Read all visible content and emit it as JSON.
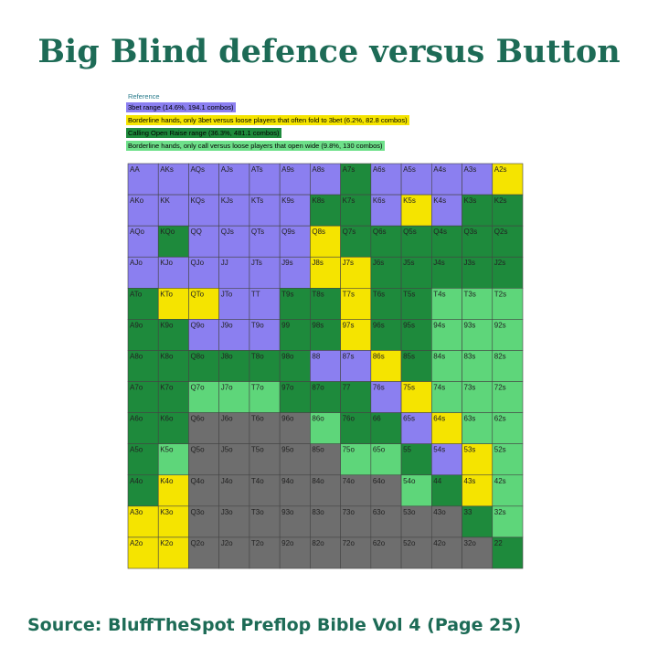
{
  "header": {
    "title": "Big Blind defence versus Button"
  },
  "legend": {
    "title": "Reference",
    "items": [
      "3bet range (14.6%, 194.1 combos)",
      "Borderline hands, only 3bet versus loose players that often fold to 3bet (6.2%, 82.8 combos)",
      "Calling Open Raise range (36.3%, 481.1 combos)",
      "Borderline hands, only call versus loose players that open wide (9.8%, 130 combos)"
    ]
  },
  "grid": {
    "rows": [
      [
        "AA",
        "AKs",
        "AQs",
        "AJs",
        "ATs",
        "A9s",
        "A8s",
        "A7s",
        "A6s",
        "A5s",
        "A4s",
        "A3s",
        "A2s"
      ],
      [
        "AKo",
        "KK",
        "KQs",
        "KJs",
        "KTs",
        "K9s",
        "K8s",
        "K7s",
        "K6s",
        "K5s",
        "K4s",
        "K3s",
        "K2s"
      ],
      [
        "AQo",
        "KQo",
        "QQ",
        "QJs",
        "QTs",
        "Q9s",
        "Q8s",
        "Q7s",
        "Q6s",
        "Q5s",
        "Q4s",
        "Q3s",
        "Q2s"
      ],
      [
        "AJo",
        "KJo",
        "QJo",
        "JJ",
        "JTs",
        "J9s",
        "J8s",
        "J7s",
        "J6s",
        "J5s",
        "J4s",
        "J3s",
        "J2s"
      ],
      [
        "ATo",
        "KTo",
        "QTo",
        "JTo",
        "TT",
        "T9s",
        "T8s",
        "T7s",
        "T6s",
        "T5s",
        "T4s",
        "T3s",
        "T2s"
      ],
      [
        "A9o",
        "K9o",
        "Q9o",
        "J9o",
        "T9o",
        "99",
        "98s",
        "97s",
        "96s",
        "95s",
        "94s",
        "93s",
        "92s"
      ],
      [
        "A8o",
        "K8o",
        "Q8o",
        "J8o",
        "T8o",
        "98o",
        "88",
        "87s",
        "86s",
        "85s",
        "84s",
        "83s",
        "82s"
      ],
      [
        "A7o",
        "K7o",
        "Q7o",
        "J7o",
        "T7o",
        "97o",
        "87o",
        "77",
        "76s",
        "75s",
        "74s",
        "73s",
        "72s"
      ],
      [
        "A6o",
        "K6o",
        "Q6o",
        "J6o",
        "T6o",
        "96o",
        "86o",
        "76o",
        "66",
        "65s",
        "64s",
        "63s",
        "62s"
      ],
      [
        "A5o",
        "K5o",
        "Q5o",
        "J5o",
        "T5o",
        "95o",
        "85o",
        "75o",
        "65o",
        "55",
        "54s",
        "53s",
        "52s"
      ],
      [
        "A4o",
        "K4o",
        "Q4o",
        "J4o",
        "T4o",
        "94o",
        "84o",
        "74o",
        "64o",
        "54o",
        "44",
        "43s",
        "42s"
      ],
      [
        "A3o",
        "K3o",
        "Q3o",
        "J3o",
        "T3o",
        "93o",
        "83o",
        "73o",
        "63o",
        "53o",
        "43o",
        "33",
        "32s"
      ],
      [
        "A2o",
        "K2o",
        "Q2o",
        "J2o",
        "T2o",
        "92o",
        "82o",
        "72o",
        "62o",
        "52o",
        "42o",
        "32o",
        "22"
      ]
    ]
  },
  "footer": {
    "source": "Source: BluffTheSpot Preflop Bible Vol 4 (Page 25)"
  }
}
